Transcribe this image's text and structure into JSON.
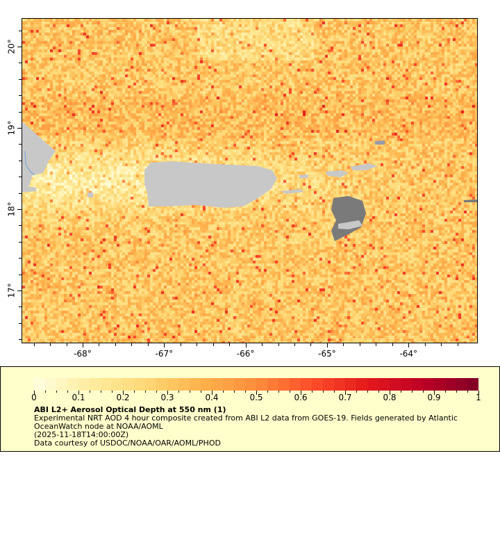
{
  "map": {
    "lon_range": [
      -68.75,
      -63.15
    ],
    "lat_range": [
      16.35,
      20.35
    ],
    "lon_ticks": [
      {
        "value": -68,
        "label": "-68°"
      },
      {
        "value": -67,
        "label": "-67°"
      },
      {
        "value": -66,
        "label": "-66°"
      },
      {
        "value": -65,
        "label": "-65°"
      },
      {
        "value": -64,
        "label": "-64°"
      }
    ],
    "lat_ticks": [
      {
        "value": 20,
        "label": "20°"
      },
      {
        "value": 19,
        "label": "19°"
      },
      {
        "value": 18,
        "label": "18°"
      },
      {
        "value": 17,
        "label": "17°"
      }
    ],
    "land_color": "#c8c8c8",
    "nodata_color": "#7a7a7a"
  },
  "legend": {
    "colorbar_range": [
      0,
      1
    ],
    "colorbar_labels": [
      "0",
      "0.1",
      "0.2",
      "0.3",
      "0.4",
      "0.5",
      "0.6",
      "0.7",
      "0.8",
      "0.9",
      "1"
    ],
    "colormap": [
      "#ffffe0",
      "#ffeda0",
      "#fed976",
      "#feb24c",
      "#fd8d3c",
      "#fc4e2a",
      "#e31a1c",
      "#bd0026",
      "#800026"
    ],
    "title": "ABI L2+ Aerosol Optical Depth at 550 nm (1)",
    "description_line1": "Experimental NRT AOD 4 hour composite created from ABI L2 data from GOES-19. Fields generated by Atlantic OceanWatch node at NOAA/AOML",
    "time": "(2025-11-18T14:00:00Z)",
    "credit": "Data courtesy of USDOC/NOAA/OAR/AOML/PHOD"
  }
}
